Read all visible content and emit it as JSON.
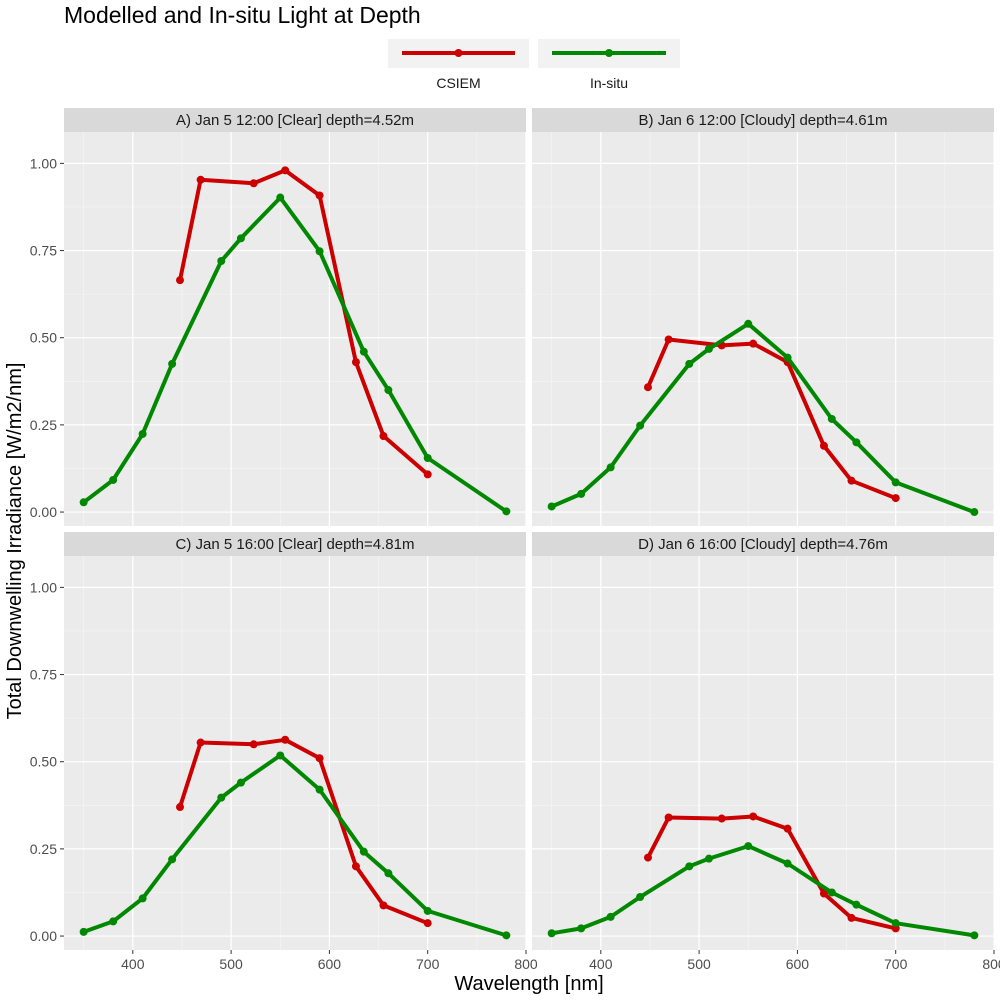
{
  "chart_data": {
    "type": "line",
    "title": "Modelled and In-situ Light at Depth",
    "xlabel": "Wavelength [nm]",
    "ylabel": "Total Downwelling Irradiance [W/m2/nm]",
    "xlim": [
      330,
      800
    ],
    "ylim": [
      -0.04,
      1.09
    ],
    "x_ticks": [
      400,
      500,
      600,
      700,
      800
    ],
    "y_ticks": [
      0.0,
      0.25,
      0.5,
      0.75,
      1.0
    ],
    "y_tick_labels": [
      "0.00",
      "0.25",
      "0.50",
      "0.75",
      "1.00"
    ],
    "legend": [
      {
        "name": "CSIEM",
        "color": "#cc0000"
      },
      {
        "name": "In-situ",
        "color": "#008800"
      }
    ],
    "legend_position": "top-center",
    "panels": [
      {
        "label": "A) Jan 5 12:00 [Clear] depth=4.52m",
        "series": [
          {
            "name": "CSIEM",
            "color": "#cc0000",
            "x": [
              448,
              469,
              523,
              555,
              590,
              627,
              655,
              700
            ],
            "y": [
              0.665,
              0.953,
              0.943,
              0.98,
              0.908,
              0.43,
              0.218,
              0.108
            ]
          },
          {
            "name": "In-situ",
            "color": "#008800",
            "x": [
              350,
              380,
              410,
              440,
              490,
              510,
              550,
              590,
              635,
              660,
              700,
              780
            ],
            "y": [
              0.028,
              0.092,
              0.224,
              0.425,
              0.72,
              0.785,
              0.902,
              0.748,
              0.46,
              0.35,
              0.155,
              0.002
            ]
          }
        ]
      },
      {
        "label": "B) Jan 6 12:00 [Cloudy] depth=4.61m",
        "series": [
          {
            "name": "CSIEM",
            "color": "#cc0000",
            "x": [
              448,
              469,
              523,
              555,
              590,
              627,
              655,
              700
            ],
            "y": [
              0.358,
              0.495,
              0.478,
              0.483,
              0.43,
              0.19,
              0.09,
              0.04
            ]
          },
          {
            "name": "In-situ",
            "color": "#008800",
            "x": [
              350,
              380,
              410,
              440,
              490,
              510,
              550,
              590,
              635,
              660,
              700,
              780
            ],
            "y": [
              0.016,
              0.052,
              0.128,
              0.248,
              0.425,
              0.468,
              0.54,
              0.443,
              0.267,
              0.2,
              0.085,
              0.0
            ]
          }
        ]
      },
      {
        "label": "C) Jan 5 16:00 [Clear] depth=4.81m",
        "series": [
          {
            "name": "CSIEM",
            "color": "#cc0000",
            "x": [
              448,
              469,
              523,
              555,
              590,
              627,
              655,
              700
            ],
            "y": [
              0.37,
              0.555,
              0.55,
              0.563,
              0.51,
              0.2,
              0.088,
              0.037
            ]
          },
          {
            "name": "In-situ",
            "color": "#008800",
            "x": [
              350,
              380,
              410,
              440,
              490,
              510,
              550,
              590,
              635,
              660,
              700,
              780
            ],
            "y": [
              0.012,
              0.042,
              0.108,
              0.22,
              0.397,
              0.44,
              0.518,
              0.42,
              0.242,
              0.18,
              0.072,
              0.002
            ]
          }
        ]
      },
      {
        "label": "D) Jan 6 16:00 [Cloudy] depth=4.76m",
        "series": [
          {
            "name": "CSIEM",
            "color": "#cc0000",
            "x": [
              448,
              469,
              523,
              555,
              590,
              627,
              655,
              700
            ],
            "y": [
              0.225,
              0.34,
              0.337,
              0.343,
              0.308,
              0.122,
              0.052,
              0.022
            ]
          },
          {
            "name": "In-situ",
            "color": "#008800",
            "x": [
              350,
              380,
              410,
              440,
              490,
              510,
              550,
              590,
              635,
              660,
              700,
              780
            ],
            "y": [
              0.008,
              0.022,
              0.055,
              0.112,
              0.2,
              0.222,
              0.258,
              0.208,
              0.125,
              0.09,
              0.037,
              0.002
            ]
          }
        ]
      }
    ]
  }
}
